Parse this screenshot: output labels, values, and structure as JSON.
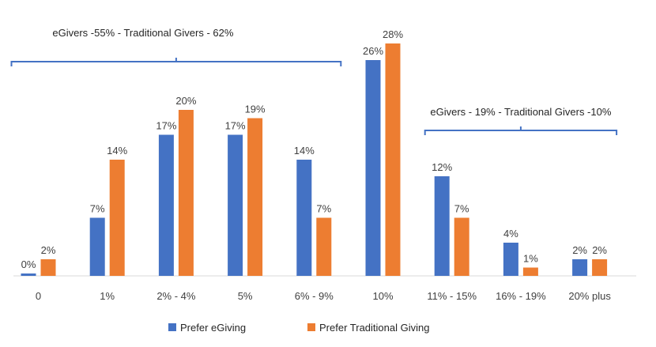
{
  "chart_data": {
    "type": "bar",
    "title": "",
    "xlabel": "",
    "ylabel": "",
    "ylim": [
      0,
      28
    ],
    "grid": false,
    "legend_position": "bottom",
    "categories": [
      "0",
      "1%",
      "2% - 4%",
      "5%",
      "6% - 9%",
      "10%",
      "11% - 15%",
      "16% - 19%",
      "20% plus"
    ],
    "series": [
      {
        "name": "Prefer eGiving",
        "color": "#4472C4",
        "values": [
          0,
          7,
          17,
          17,
          14,
          26,
          12,
          4,
          2
        ],
        "labels": [
          "0%",
          "7%",
          "17%",
          "17%",
          "14%",
          "26%",
          "12%",
          "4%",
          "2%"
        ]
      },
      {
        "name": "Prefer Traditional Giving",
        "color": "#ED7D31",
        "values": [
          2,
          14,
          20,
          19,
          7,
          28,
          7,
          1,
          2
        ],
        "labels": [
          "2%",
          "14%",
          "20%",
          "19%",
          "7%",
          "28%",
          "7%",
          "1%",
          "2%"
        ]
      }
    ],
    "annotations": [
      {
        "text": "eGivers -55% - Traditional Givers - 62%",
        "span": [
          "0",
          "6% - 9%"
        ]
      },
      {
        "text": "eGivers - 19% - Traditional Givers -10%",
        "span": [
          "11% - 15%",
          "20% plus"
        ]
      }
    ],
    "bracket_color": "#4472C4"
  }
}
